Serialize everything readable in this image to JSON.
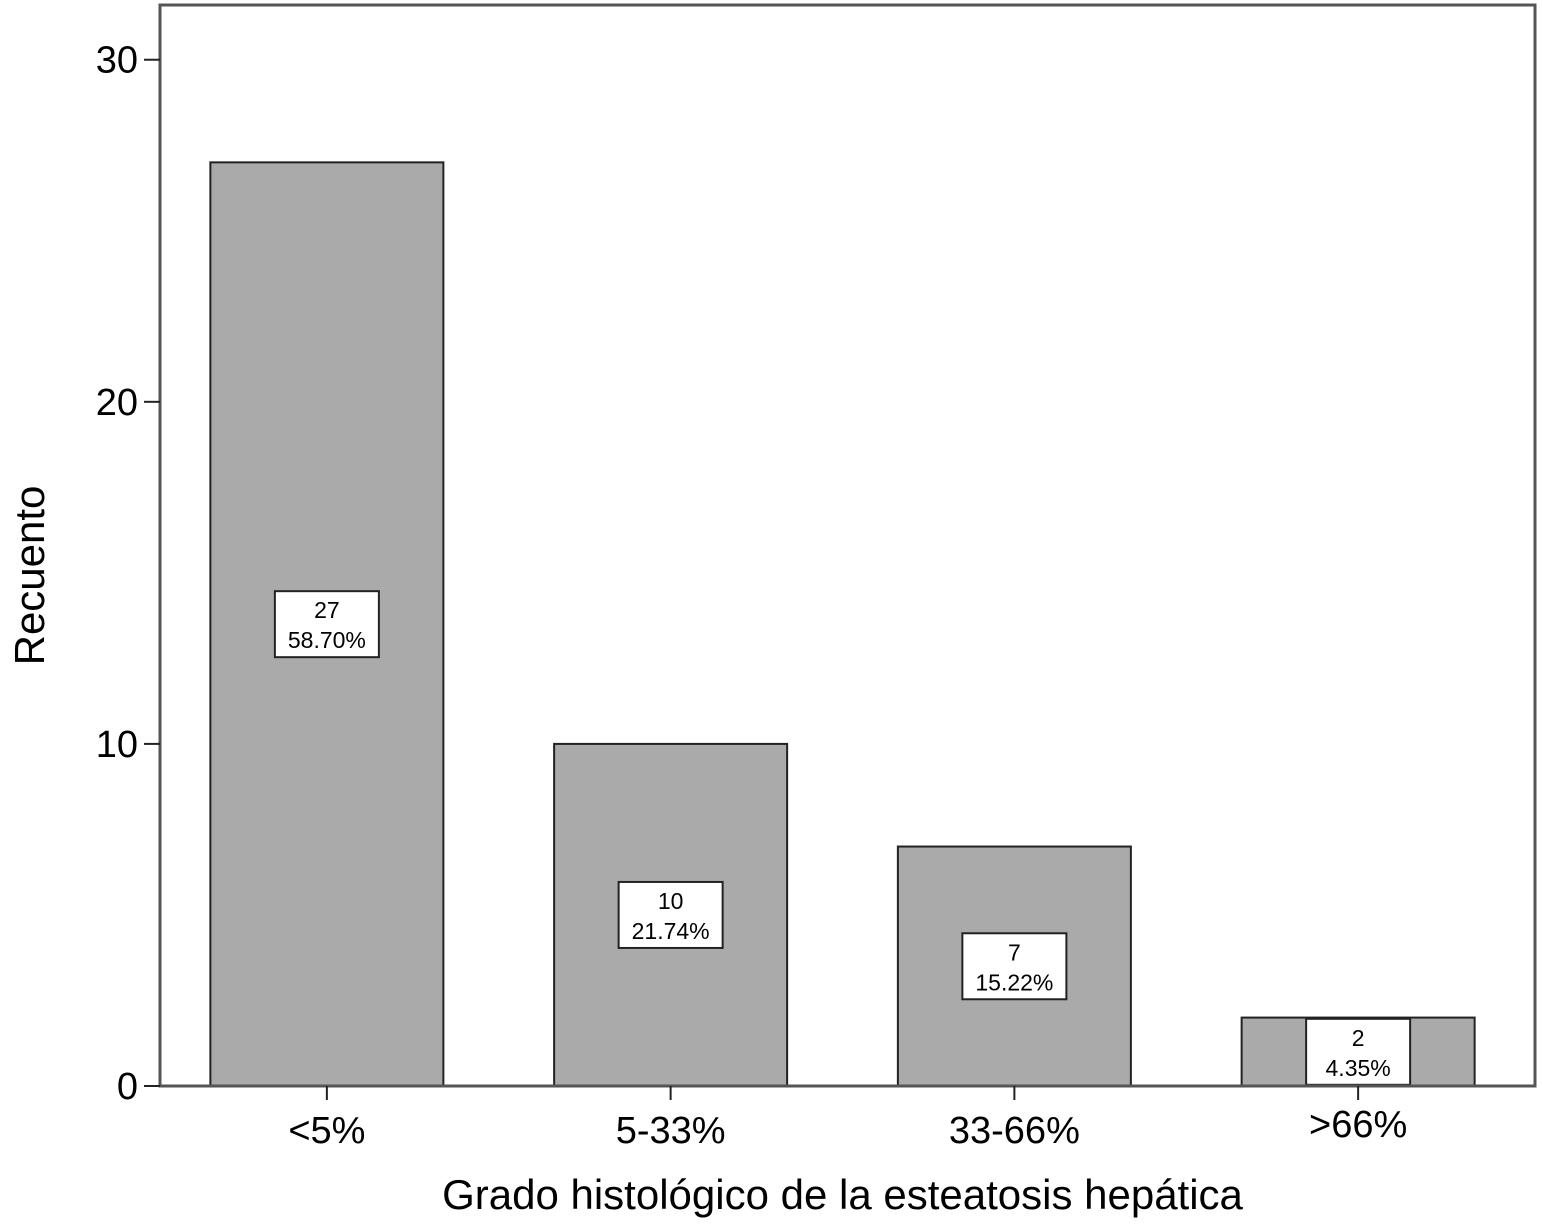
{
  "chart_data": {
    "type": "bar",
    "title": "",
    "xlabel": "Grado histológico de la esteatosis hepática",
    "ylabel": "Recuento",
    "categories": [
      "<5%",
      "5-33%",
      "33-66%",
      ">66%"
    ],
    "values": [
      27,
      10,
      7,
      2
    ],
    "data_labels": [
      {
        "count": "27",
        "percent": "58.70%"
      },
      {
        "count": "10",
        "percent": "21.74%"
      },
      {
        "count": "7",
        "percent": "15.22%"
      },
      {
        "count": "2",
        "percent": "4.35%"
      }
    ],
    "yticks": [
      0,
      10,
      20,
      30
    ],
    "ylim": [
      0,
      31.6
    ],
    "grid": false,
    "legend": "none",
    "bar_color": "#aaaaaa"
  }
}
